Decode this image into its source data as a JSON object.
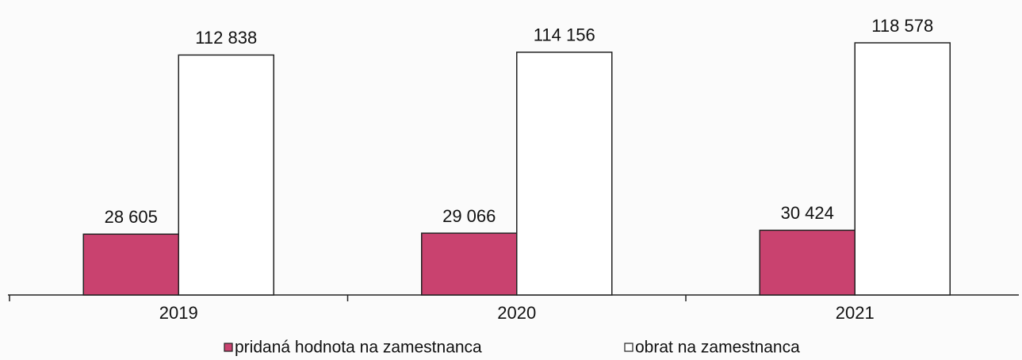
{
  "chart_data": {
    "type": "bar",
    "categories": [
      "2019",
      "2020",
      "2021"
    ],
    "series": [
      {
        "name": "pridaná hodnota na zamestnanca",
        "color": "#c9426f",
        "values": [
          28605,
          29066,
          30424
        ],
        "value_labels": [
          "28 605",
          "29 066",
          "30 424"
        ]
      },
      {
        "name": "obrat na zamestnanca",
        "color": "#ffffff",
        "values": [
          112838,
          114156,
          118578
        ],
        "value_labels": [
          "112 838",
          "114 156",
          "118 578"
        ]
      }
    ]
  }
}
